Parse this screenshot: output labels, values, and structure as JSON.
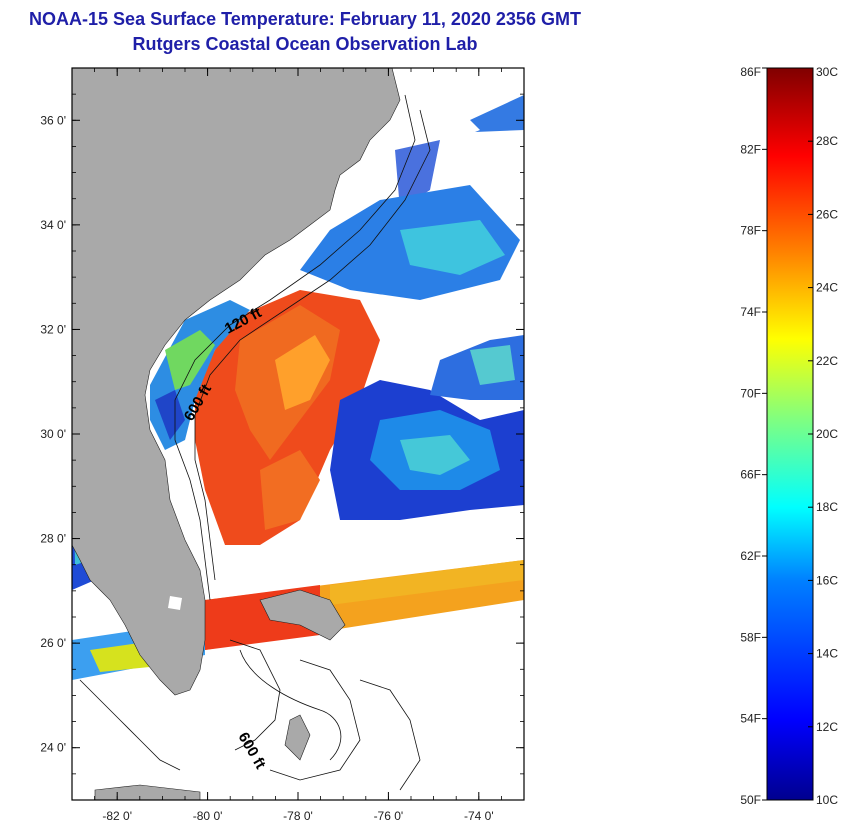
{
  "header": {
    "title": "NOAA-15 Sea Surface Temperature:  February 11, 2020 2356 GMT",
    "subtitle": "Rutgers Coastal Ocean Observation Lab"
  },
  "map": {
    "lon_range": [
      -83,
      -73
    ],
    "lat_range": [
      23,
      37
    ],
    "lon_ticks": [
      {
        "value": -82,
        "label": "-82 0'"
      },
      {
        "value": -80,
        "label": "-80 0'"
      },
      {
        "value": -78,
        "label": "-78 0'"
      },
      {
        "value": -76,
        "label": "-76 0'"
      },
      {
        "value": -74,
        "label": "-74 0'"
      }
    ],
    "lat_ticks": [
      {
        "value": 36,
        "label": "36 0'"
      },
      {
        "value": 34,
        "label": "34 0'"
      },
      {
        "value": 32,
        "label": "32 0'"
      },
      {
        "value": 30,
        "label": "30 0'"
      },
      {
        "value": 28,
        "label": "28 0'"
      },
      {
        "value": 26,
        "label": "26 0'"
      },
      {
        "value": 24,
        "label": "24 0'"
      }
    ],
    "contour_labels": [
      "120 ft",
      "600 ft",
      "600 ft"
    ],
    "colors": {
      "land": "#a9a9a9",
      "no_data": "#ffffff"
    }
  },
  "colorbar": {
    "fahrenheit_labels": [
      "86F",
      "82F",
      "78F",
      "74F",
      "70F",
      "66F",
      "62F",
      "58F",
      "54F",
      "50F"
    ],
    "celsius_labels": [
      "30C",
      "28C",
      "26C",
      "24C",
      "22C",
      "20C",
      "18C",
      "16C",
      "14C",
      "12C",
      "10C"
    ],
    "range_c": [
      10,
      30
    ],
    "range_f": [
      50,
      86
    ],
    "colormap": [
      "#00008f",
      "#0000ff",
      "#0080ff",
      "#00ffff",
      "#80ff80",
      "#ffff00",
      "#ff8000",
      "#ff0000",
      "#800000"
    ]
  }
}
